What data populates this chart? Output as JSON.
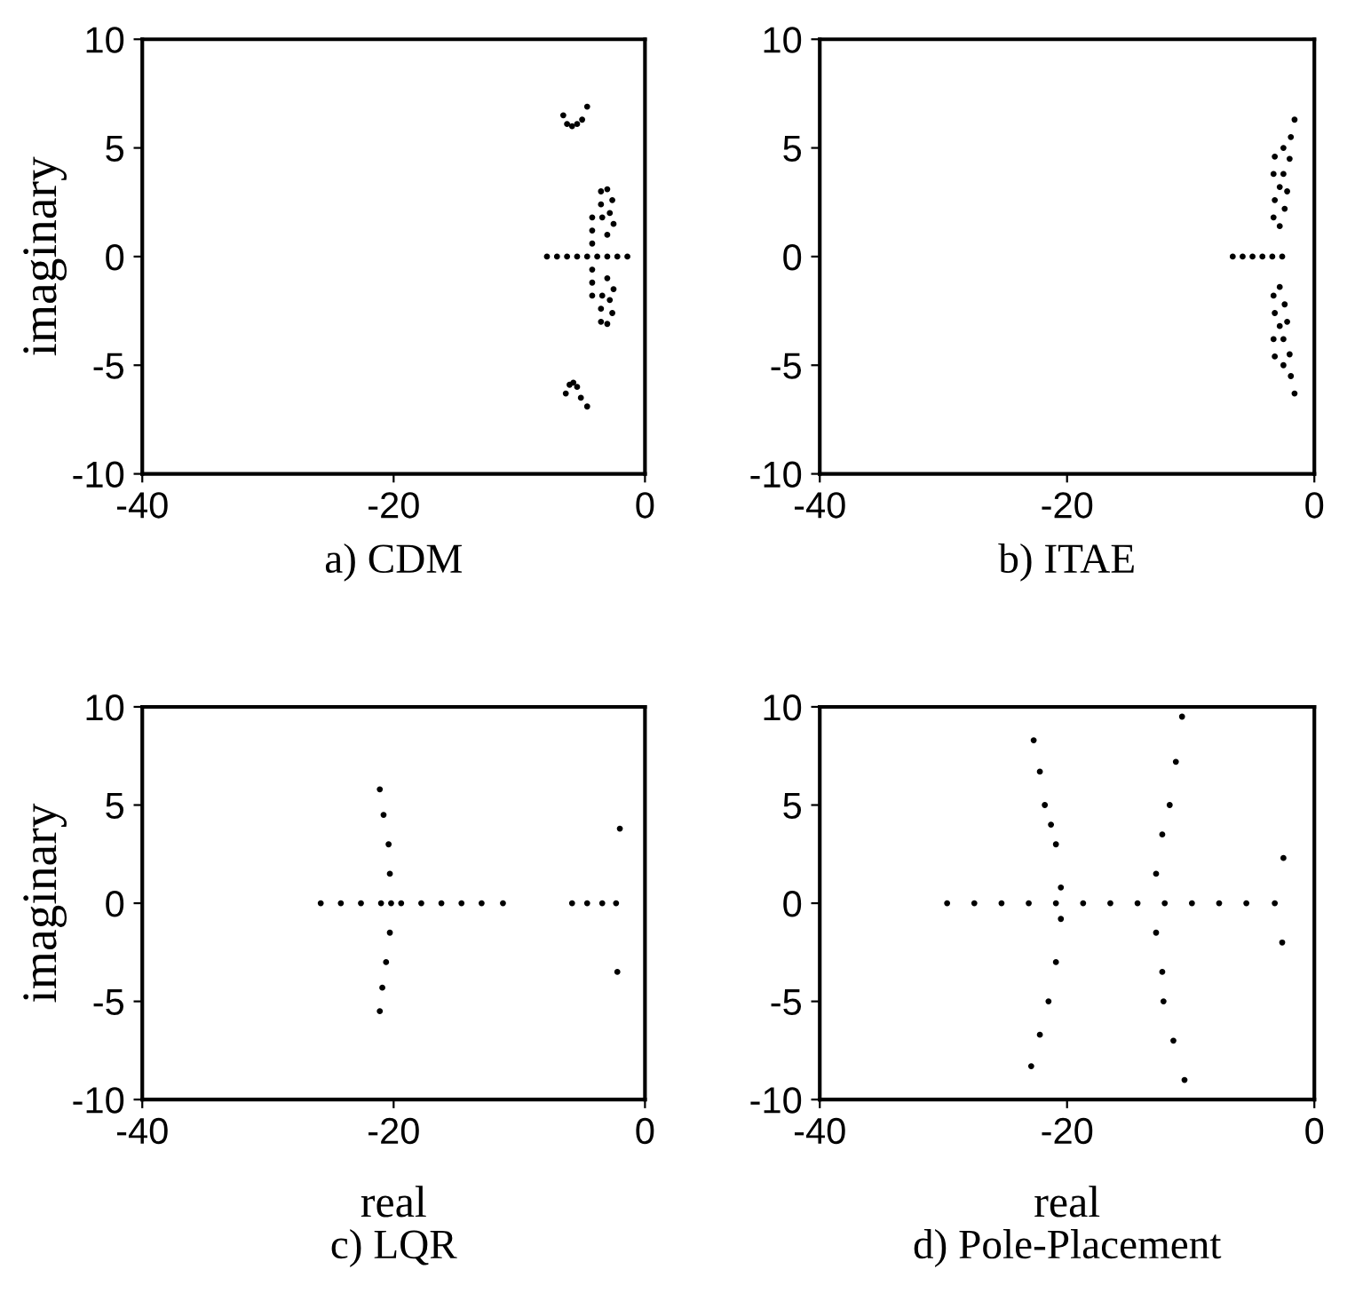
{
  "chart_data": [
    {
      "type": "scatter",
      "title": "a) CDM",
      "ylabel": "imaginary",
      "color": "#000000",
      "marker": "circle",
      "xlim": [
        -40,
        0
      ],
      "ylim": [
        -10,
        10
      ],
      "xticks": [
        -40,
        -20,
        0
      ],
      "yticks": [
        -10,
        -5,
        0,
        5,
        10
      ],
      "x": [
        -6.5,
        -6.2,
        -5.8,
        -5.4,
        -5.0,
        -4.6,
        -6.3,
        -6.0,
        -5.7,
        -5.4,
        -5.1,
        -4.6,
        -7.8,
        -7.0,
        -6.2,
        -5.4,
        -4.6,
        -3.8,
        -3.0,
        -2.2,
        -1.4,
        -4.2,
        -4.2,
        -4.2,
        -4.2,
        -4.2,
        -4.2,
        -3.5,
        -3.0,
        -2.6,
        -2.8,
        -2.5,
        -3.0,
        -3.4,
        -3.5,
        -3.5,
        -3.0,
        -2.6,
        -2.8,
        -2.5,
        -3.0,
        -3.4,
        -3.5
      ],
      "values": [
        6.5,
        6.1,
        6.0,
        6.1,
        6.3,
        6.9,
        -6.3,
        -5.9,
        -5.8,
        -6.0,
        -6.5,
        -6.9,
        0,
        0,
        0,
        0,
        0,
        0,
        0,
        0,
        0,
        -1.8,
        -1.2,
        -0.6,
        0.6,
        1.2,
        1.8,
        3.0,
        3.1,
        2.6,
        2.0,
        1.5,
        1.0,
        1.8,
        2.4,
        -3.0,
        -3.1,
        -2.6,
        -2.0,
        -1.5,
        -1.0,
        -1.8,
        -2.4
      ]
    },
    {
      "type": "scatter",
      "title": "b) ITAE",
      "color": "#000000",
      "marker": "circle",
      "xlim": [
        -40,
        0
      ],
      "ylim": [
        -10,
        10
      ],
      "xticks": [
        -40,
        -20,
        0
      ],
      "yticks": [
        -10,
        -5,
        0,
        5,
        10
      ],
      "x": [
        -6.6,
        -5.8,
        -5.0,
        -4.2,
        -3.4,
        -2.6,
        -1.6,
        -1.9,
        -2.5,
        -3.2,
        -3.3,
        -2.8,
        -3.2,
        -3.3,
        -2.8,
        -2.4,
        -2.2,
        -2.5,
        -2.0,
        -1.6,
        -1.9,
        -2.5,
        -3.2,
        -3.3,
        -2.8,
        -3.2,
        -3.3,
        -2.8,
        -2.4,
        -2.2,
        -2.5,
        -2.0
      ],
      "values": [
        0,
        0,
        0,
        0,
        0,
        0,
        6.3,
        5.5,
        5.0,
        4.6,
        3.8,
        3.2,
        2.6,
        1.8,
        1.4,
        2.2,
        3.0,
        3.8,
        4.5,
        -6.3,
        -5.5,
        -5.0,
        -4.6,
        -3.8,
        -3.2,
        -2.6,
        -1.8,
        -1.4,
        -2.2,
        -3.0,
        -3.8,
        -4.5
      ]
    },
    {
      "type": "scatter",
      "title": "c) LQR",
      "xlabel": "real",
      "ylabel": "imaginary",
      "color": "#000000",
      "marker": "circle",
      "xlim": [
        -40,
        0
      ],
      "ylim": [
        -10,
        10
      ],
      "xticks": [
        -40,
        -20,
        0
      ],
      "yticks": [
        -10,
        -5,
        0,
        5,
        10
      ],
      "x": [
        -21.1,
        -20.8,
        -20.4,
        -20.3,
        -20.2,
        -20.3,
        -20.6,
        -20.9,
        -21.1,
        -25.8,
        -24.2,
        -22.6,
        -21.0,
        -19.4,
        -17.8,
        -16.2,
        -14.6,
        -13.0,
        -11.3,
        -5.8,
        -4.6,
        -3.4,
        -2.3,
        -2.0,
        -2.2
      ],
      "values": [
        5.8,
        4.5,
        3.0,
        1.5,
        0,
        -1.5,
        -3.0,
        -4.3,
        -5.5,
        0,
        0,
        0,
        0,
        0,
        0,
        0,
        0,
        0,
        0,
        0,
        0,
        0,
        0,
        3.8,
        -3.5
      ]
    },
    {
      "type": "scatter",
      "title": "d) Pole-Placement",
      "xlabel": "real",
      "color": "#000000",
      "marker": "circle",
      "xlim": [
        -40,
        0
      ],
      "ylim": [
        -10,
        10
      ],
      "xticks": [
        -40,
        -20,
        0
      ],
      "yticks": [
        -10,
        -5,
        0,
        5,
        10
      ],
      "x": [
        -22.7,
        -22.2,
        -21.8,
        -21.3,
        -20.9,
        -20.9,
        -21.5,
        -22.2,
        -22.9,
        -10.7,
        -11.2,
        -11.7,
        -12.3,
        -12.8,
        -12.8,
        -12.3,
        -12.2,
        -11.4,
        -10.5,
        -29.7,
        -27.5,
        -25.3,
        -23.1,
        -20.9,
        -18.7,
        -16.5,
        -14.3,
        -12.1,
        -9.9,
        -7.7,
        -5.5,
        -3.2,
        -20.5,
        -20.5,
        -2.5,
        -2.6
      ],
      "values": [
        8.3,
        6.7,
        5.0,
        4.0,
        3.0,
        -3.0,
        -5.0,
        -6.7,
        -8.3,
        9.5,
        7.2,
        5.0,
        3.5,
        1.5,
        -1.5,
        -3.5,
        -5.0,
        -7.0,
        -9.0,
        0,
        0,
        0,
        0,
        0,
        0,
        0,
        0,
        0,
        0,
        0,
        0,
        0,
        0.8,
        -0.8,
        2.3,
        -2.0
      ]
    }
  ]
}
